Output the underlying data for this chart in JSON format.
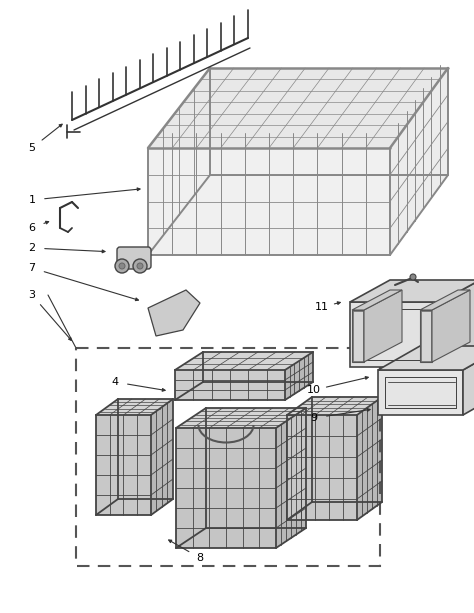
{
  "bg_color": "#ffffff",
  "line_color": "#444444",
  "label_color": "#000000",
  "dashed_box_color": "#555555",
  "fig_w": 4.74,
  "fig_h": 6.13,
  "dpi": 100,
  "basket_color": "#aaaaaa",
  "basket_fill": "#e8e8e8",
  "parts_fill": "#d8d8d8",
  "panel_fill": "#e0e0e0"
}
